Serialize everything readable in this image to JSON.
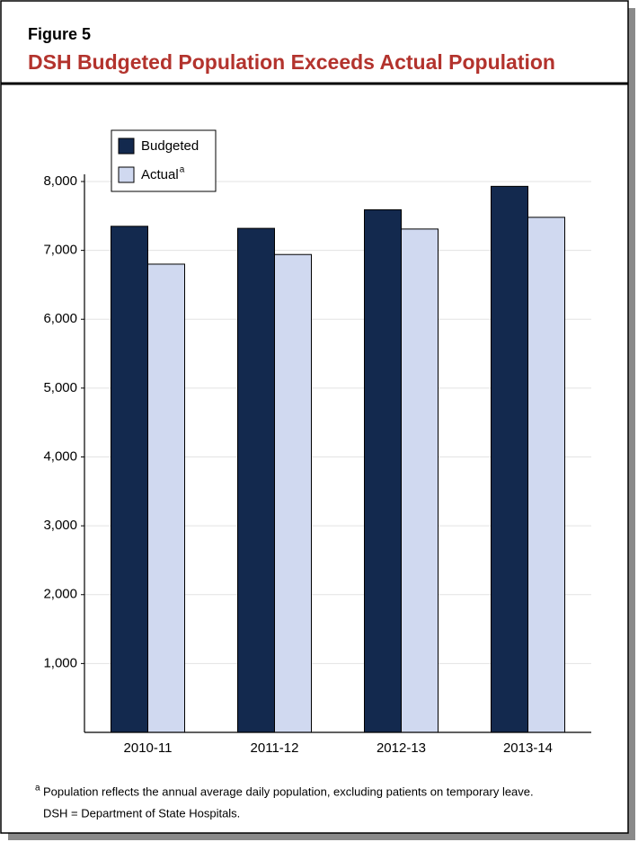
{
  "chart_data": {
    "type": "bar",
    "figure_label": "Figure 5",
    "title": "DSH Budgeted Population Exceeds Actual Population",
    "categories": [
      "2010-11",
      "2011-12",
      "2012-13",
      "2013-14"
    ],
    "series": [
      {
        "name": "Budgeted",
        "color": "#13294e",
        "values": [
          7350,
          7320,
          7590,
          7930
        ]
      },
      {
        "name": "Actual",
        "footnote_marker": "a",
        "color": "#d0d9f0",
        "values": [
          6800,
          6940,
          7310,
          7480
        ]
      }
    ],
    "ylim": [
      0,
      8000
    ],
    "yticks": [
      {
        "value": 1000,
        "label": "1,000"
      },
      {
        "value": 2000,
        "label": "2,000"
      },
      {
        "value": 3000,
        "label": "3,000"
      },
      {
        "value": 4000,
        "label": "4,000"
      },
      {
        "value": 5000,
        "label": "5,000"
      },
      {
        "value": 6000,
        "label": "6,000"
      },
      {
        "value": 7000,
        "label": "7,000"
      },
      {
        "value": 8000,
        "label": "8,000"
      }
    ],
    "grid": true,
    "legend": "top-left",
    "footnotes": [
      {
        "marker": "a",
        "text": "Population reflects the annual average daily population, excluding patients on temporary leave."
      }
    ],
    "note": "DSH = Department of State Hospitals."
  }
}
